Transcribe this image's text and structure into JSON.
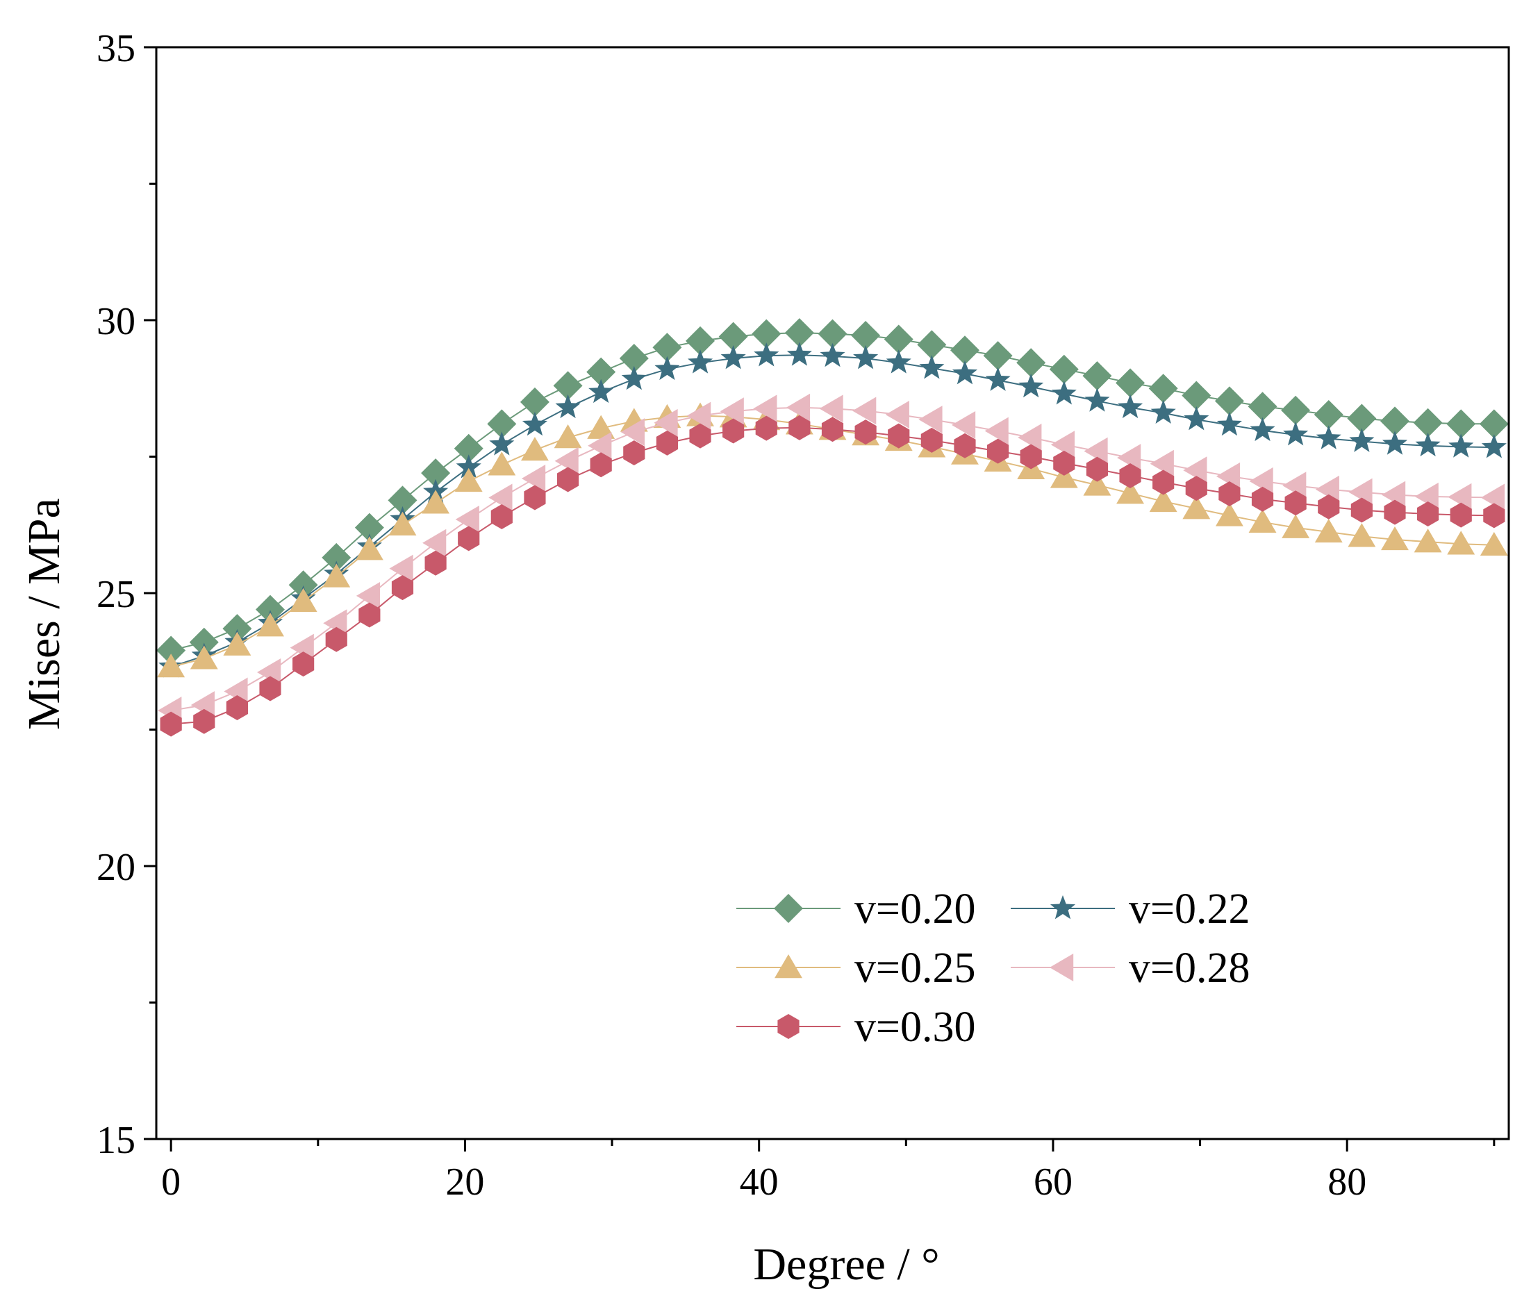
{
  "chart_data": {
    "type": "line",
    "title": "",
    "xlabel": "Degree / °",
    "ylabel": "Mises / MPa",
    "xlim": [
      -1,
      91
    ],
    "ylim": [
      15,
      35
    ],
    "xticks": [
      0,
      20,
      40,
      60,
      80
    ],
    "xticks_minor": [
      10,
      30,
      50,
      70,
      90
    ],
    "yticks": [
      15,
      20,
      25,
      30,
      35
    ],
    "yticks_minor": [
      17.5,
      22.5,
      27.5,
      32.5
    ],
    "grid": false,
    "legend_position": "lower-right",
    "x": [
      0,
      2.25,
      4.5,
      6.75,
      9,
      11.25,
      13.5,
      15.75,
      18,
      20.25,
      22.5,
      24.75,
      27,
      29.25,
      31.5,
      33.75,
      36,
      38.25,
      40.5,
      42.75,
      45,
      47.25,
      49.5,
      51.75,
      54,
      56.25,
      58.5,
      60.75,
      63,
      65.25,
      67.5,
      69.75,
      72,
      74.25,
      76.5,
      78.75,
      81,
      83.25,
      85.5,
      87.75,
      90
    ],
    "series": [
      {
        "name": "v=0.20",
        "color": "#6b9a7a",
        "marker": "diamond",
        "values": [
          23.95,
          24.1,
          24.35,
          24.7,
          25.15,
          25.65,
          26.2,
          26.7,
          27.2,
          27.65,
          28.1,
          28.5,
          28.8,
          29.05,
          29.3,
          29.5,
          29.62,
          29.7,
          29.75,
          29.77,
          29.75,
          29.72,
          29.65,
          29.55,
          29.45,
          29.35,
          29.22,
          29.1,
          28.98,
          28.85,
          28.75,
          28.62,
          28.52,
          28.42,
          28.35,
          28.27,
          28.2,
          28.15,
          28.12,
          28.1,
          28.1
        ]
      },
      {
        "name": "v=0.22",
        "color": "#3c6e80",
        "marker": "star",
        "values": [
          23.65,
          23.85,
          24.1,
          24.45,
          24.9,
          25.35,
          25.85,
          26.35,
          26.85,
          27.3,
          27.72,
          28.08,
          28.4,
          28.68,
          28.92,
          29.1,
          29.22,
          29.3,
          29.35,
          29.36,
          29.34,
          29.3,
          29.22,
          29.12,
          29.02,
          28.9,
          28.78,
          28.65,
          28.52,
          28.4,
          28.3,
          28.18,
          28.08,
          27.98,
          27.9,
          27.83,
          27.78,
          27.73,
          27.7,
          27.68,
          27.67
        ]
      },
      {
        "name": "v=0.25",
        "color": "#e0bb7e",
        "marker": "triangle-up",
        "values": [
          23.65,
          23.8,
          24.05,
          24.4,
          24.85,
          25.3,
          25.8,
          26.25,
          26.65,
          27.05,
          27.35,
          27.62,
          27.85,
          28.02,
          28.15,
          28.22,
          28.25,
          28.23,
          28.18,
          28.1,
          28.0,
          27.9,
          27.8,
          27.68,
          27.55,
          27.42,
          27.28,
          27.12,
          26.98,
          26.83,
          26.68,
          26.55,
          26.42,
          26.3,
          26.2,
          26.12,
          26.04,
          25.98,
          25.94,
          25.9,
          25.88
        ]
      },
      {
        "name": "v=0.28",
        "color": "#e8b8c0",
        "marker": "triangle-left",
        "values": [
          22.85,
          22.95,
          23.2,
          23.55,
          24.0,
          24.45,
          24.95,
          25.45,
          25.92,
          26.35,
          26.75,
          27.1,
          27.42,
          27.7,
          27.95,
          28.12,
          28.25,
          28.33,
          28.38,
          28.4,
          28.38,
          28.34,
          28.27,
          28.18,
          28.08,
          27.97,
          27.85,
          27.72,
          27.6,
          27.48,
          27.37,
          27.25,
          27.14,
          27.05,
          26.97,
          26.9,
          26.85,
          26.8,
          26.77,
          26.76,
          26.75
        ]
      },
      {
        "name": "v=0.30",
        "color": "#c8596a",
        "marker": "hexagon",
        "values": [
          22.6,
          22.65,
          22.9,
          23.25,
          23.7,
          24.15,
          24.6,
          25.1,
          25.55,
          26.0,
          26.4,
          26.75,
          27.08,
          27.35,
          27.57,
          27.75,
          27.88,
          27.97,
          28.02,
          28.03,
          28.0,
          27.95,
          27.88,
          27.8,
          27.7,
          27.6,
          27.5,
          27.38,
          27.27,
          27.15,
          27.03,
          26.92,
          26.82,
          26.72,
          26.65,
          26.58,
          26.52,
          26.48,
          26.45,
          26.43,
          26.42
        ]
      }
    ]
  }
}
